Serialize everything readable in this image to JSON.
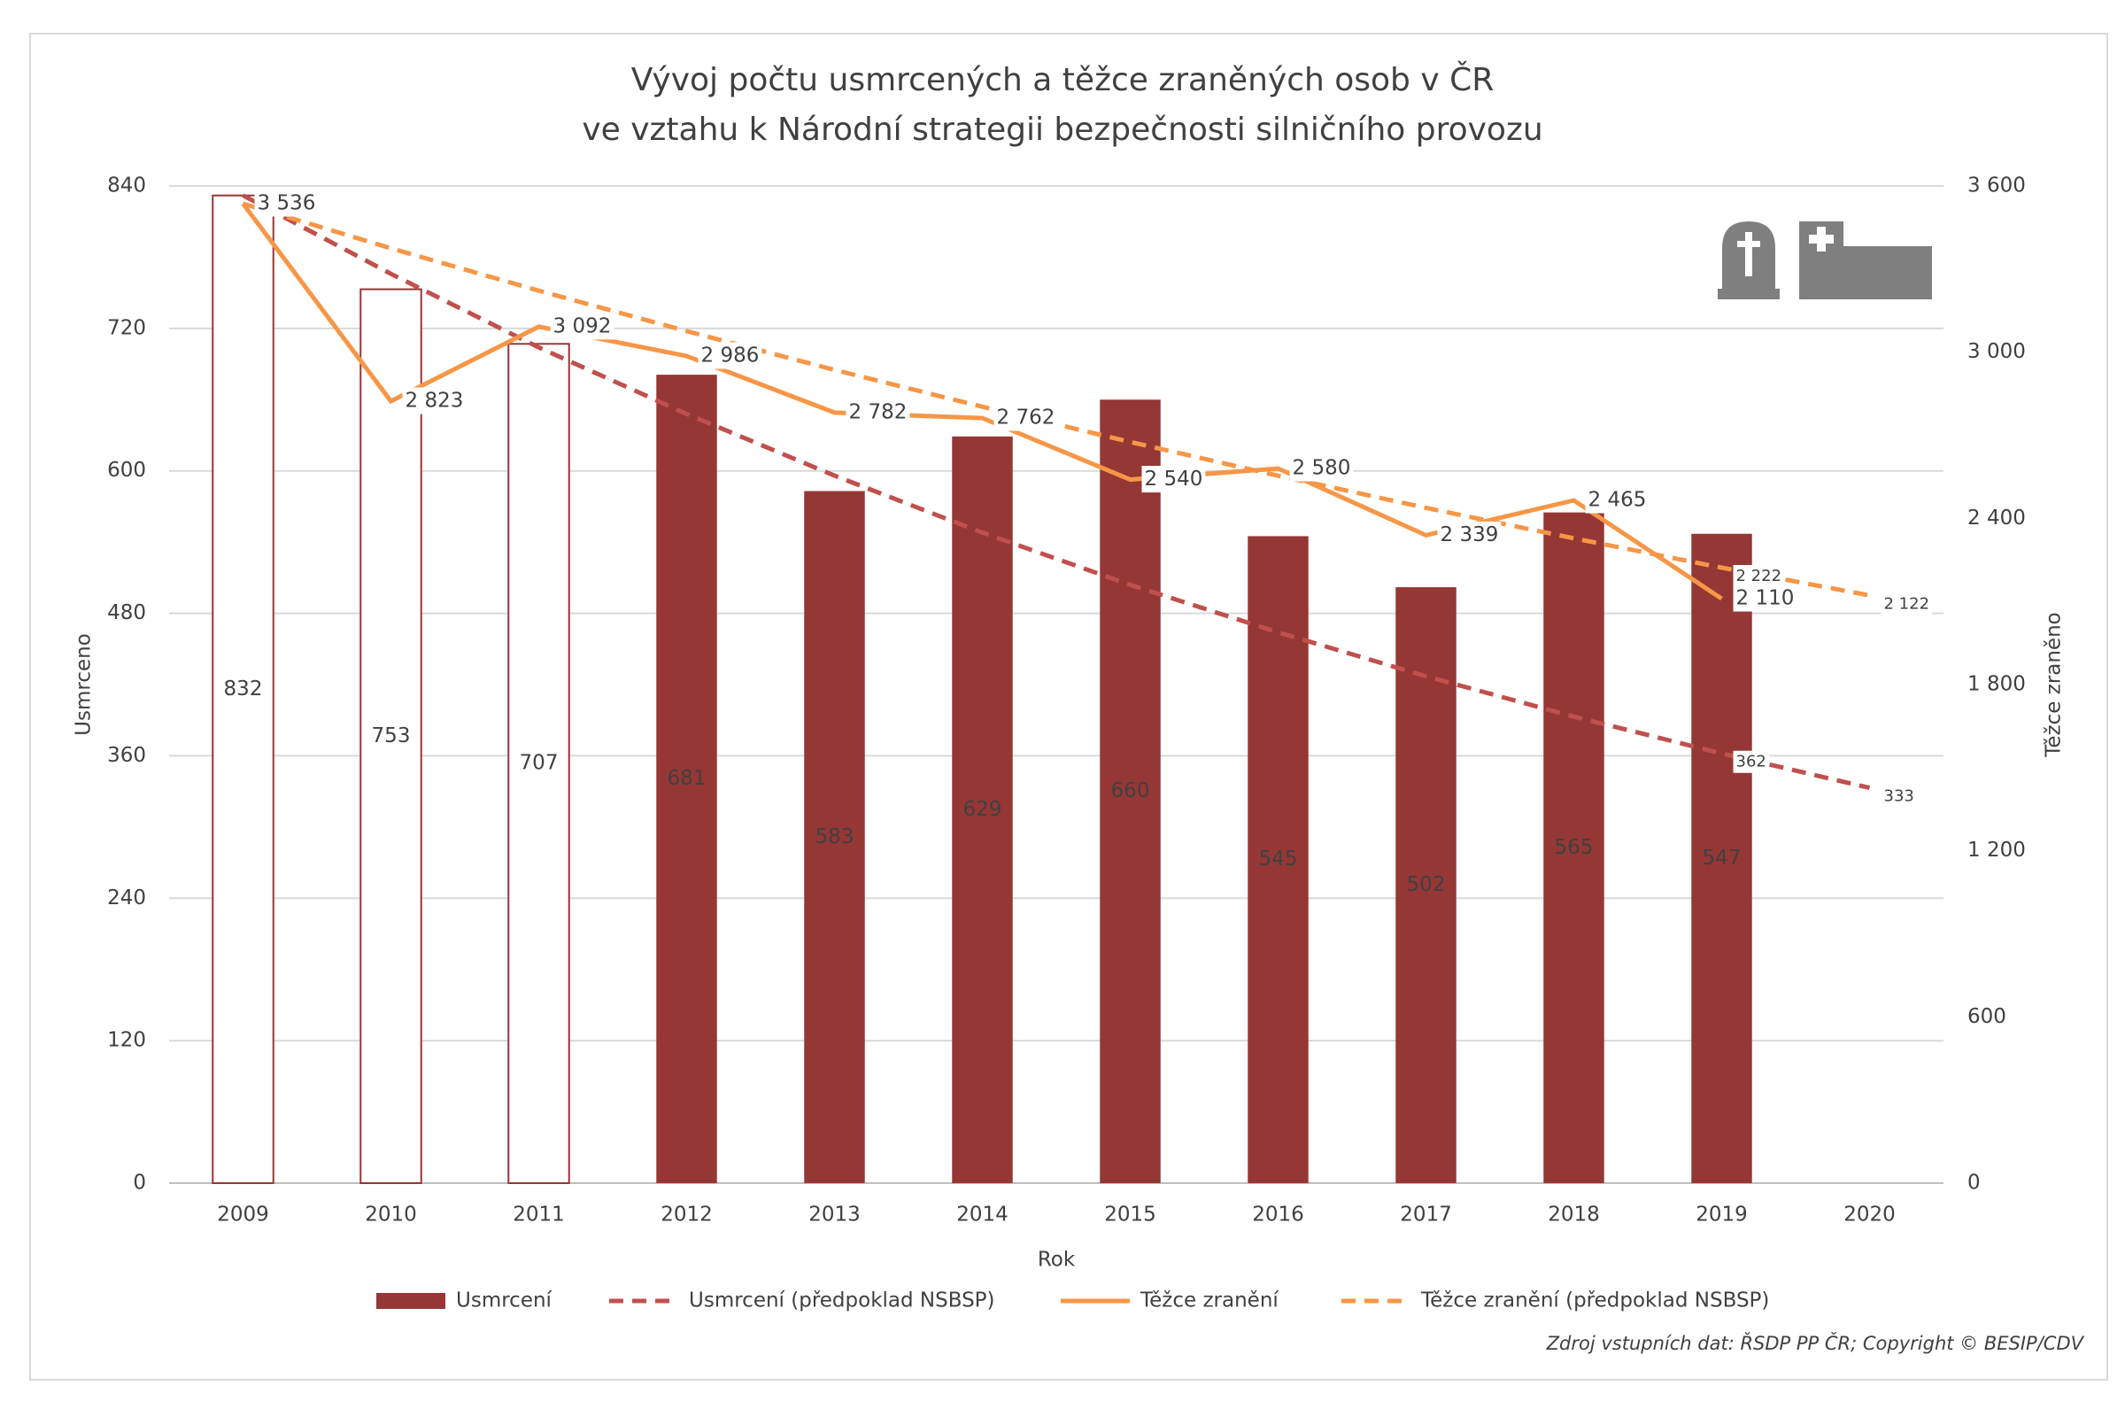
{
  "chart_data": {
    "type": "combo",
    "title": "Vývoj počtu usmrcených a těžce zraněných osob v ČR",
    "subtitle": "ve vztahu k Národní strategii bezpečnosti silničního provozu",
    "x_label": "Rok",
    "y_label": "Usmrceno",
    "y2_label": "Těžce zraněno",
    "source": "Zdroj vstupních dat: ŘSDP PP ČR; Copyright © BESIP/CDV",
    "categories": [
      "2009",
      "2010",
      "2011",
      "2012",
      "2013",
      "2014",
      "2015",
      "2016",
      "2017",
      "2018",
      "2019",
      "2020"
    ],
    "ylim": [
      0,
      840
    ],
    "yticks": [
      0,
      120,
      240,
      360,
      480,
      600,
      720,
      840
    ],
    "y2lim": [
      0,
      3600
    ],
    "y2ticks": [
      0,
      600,
      {
        "value": 1200,
        "label": "1 200"
      },
      {
        "value": 1800,
        "label": "1 800"
      },
      {
        "value": 2400,
        "label": "2 400"
      },
      {
        "value": 3000,
        "label": "3 000"
      },
      {
        "value": 3600,
        "label": "3 600"
      }
    ],
    "grid": true,
    "legend": "bottom",
    "series": [
      {
        "name": "Usmrcení",
        "type": "bar",
        "color": "#953735",
        "values": [
          832,
          753,
          707,
          681,
          583,
          629,
          660,
          545,
          502,
          565,
          547,
          null
        ],
        "hollow": [
          true,
          true,
          true,
          false,
          false,
          false,
          false,
          false,
          false,
          false,
          false,
          false
        ]
      },
      {
        "name": "Usmrcení (předpoklad NSBSP)",
        "type": "line",
        "dashed": true,
        "color": "#c0504d",
        "values": [
          832,
          766,
          704,
          648,
          596,
          548,
          504,
          464,
          427,
          393,
          362,
          333
        ],
        "value_labels": [
          null,
          null,
          null,
          null,
          null,
          null,
          null,
          null,
          null,
          null,
          "362",
          "333"
        ]
      },
      {
        "name": "Těžce zranění",
        "type": "line",
        "dashed": false,
        "color": "#f79646",
        "axis": "y2",
        "values": [
          3536,
          2823,
          3092,
          2986,
          2782,
          2762,
          2540,
          2580,
          2339,
          2465,
          2110,
          null
        ],
        "value_labels": [
          "3 536",
          "2 823",
          "3 092",
          "2 986",
          "2 782",
          "2 762",
          "2 540",
          "2 580",
          "2 339",
          "2 465",
          "2 110",
          null
        ]
      },
      {
        "name": "Těžce zranění (předpoklad NSBSP)",
        "type": "line",
        "dashed": true,
        "color": "#f79646",
        "axis": "y2",
        "values": [
          3536,
          3375,
          3222,
          3076,
          2936,
          2803,
          2676,
          2554,
          2438,
          2328,
          2222,
          2122
        ],
        "value_labels": [
          null,
          null,
          null,
          null,
          null,
          null,
          null,
          null,
          null,
          null,
          "2 222",
          "2 122"
        ]
      }
    ]
  }
}
